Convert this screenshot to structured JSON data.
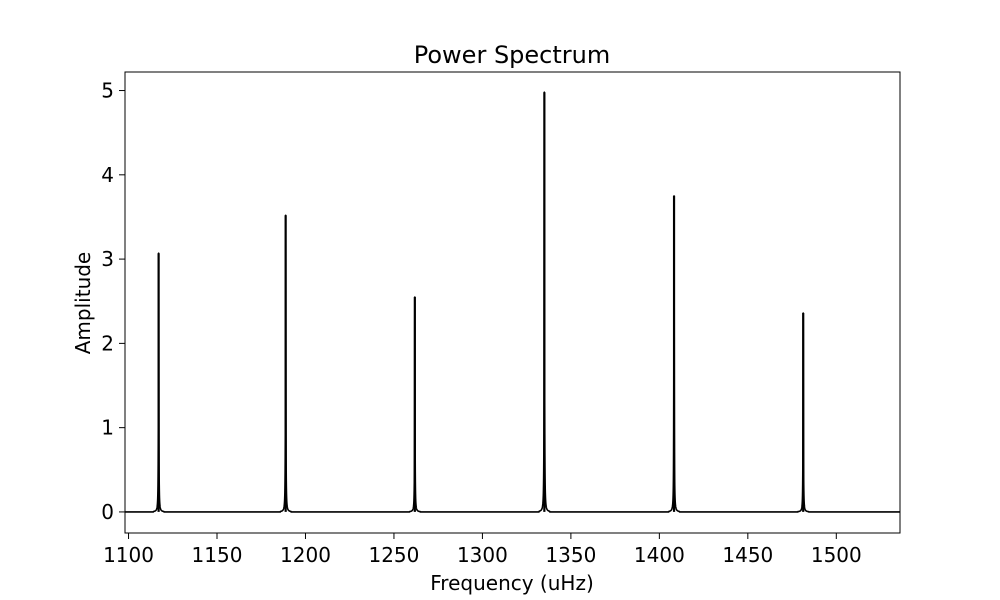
{
  "chart_data": {
    "type": "line",
    "title": "Power Spectrum",
    "xlabel": "Frequency (uHz)",
    "ylabel": "Amplitude",
    "xlim": [
      1098,
      1536
    ],
    "ylim": [
      -0.25,
      5.22
    ],
    "xticks": [
      1100,
      1150,
      1200,
      1250,
      1300,
      1350,
      1400,
      1450,
      1500
    ],
    "yticks": [
      0,
      1,
      2,
      3,
      4,
      5
    ],
    "grid": false,
    "legend": "none",
    "line_color": "#000000",
    "peaks": [
      {
        "x": 1117.0,
        "y": 3.07
      },
      {
        "x": 1188.8,
        "y": 3.52
      },
      {
        "x": 1261.8,
        "y": 2.55
      },
      {
        "x": 1335.0,
        "y": 4.98
      },
      {
        "x": 1408.3,
        "y": 3.75
      },
      {
        "x": 1481.3,
        "y": 2.36
      }
    ],
    "baseline": 0
  }
}
